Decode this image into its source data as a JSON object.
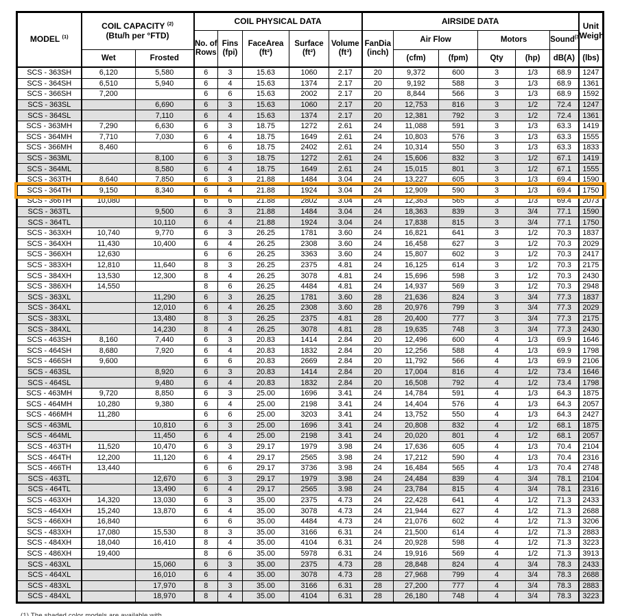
{
  "table": {
    "col_keys": [
      "model",
      "wet",
      "frosted",
      "rows",
      "fins",
      "face_area",
      "surface",
      "volume",
      "fan_dia",
      "cfm",
      "fpm",
      "motor_qty",
      "motor_hp",
      "sound_dba",
      "weight_lbs"
    ],
    "header": {
      "model": "MODEL",
      "model_sup": "(1)",
      "coil_capacity": "COIL CAPACITY",
      "coil_capacity_sup": "(2)",
      "coil_capacity_sub": "(Btu/h per °FTD)",
      "wet": "Wet",
      "frosted": "Frosted",
      "coil_physical": "COIL PHYSICAL DATA",
      "rows_l1": "No. of",
      "rows_l2": "Rows",
      "fins_l1": "Fins",
      "fins_l2": "(fpi)",
      "face_l1": "FaceArea",
      "face_l2": "(ft²)",
      "surface_l1": "Surface",
      "surface_l2": "(ft²)",
      "volume_l1": "Volume",
      "volume_l2": "(ft³)",
      "airside": "AIRSIDE DATA",
      "fandia_l1": "FanDia",
      "fandia_l2": "(inch)",
      "airflow": "Air Flow",
      "cfm": "(cfm)",
      "fpm": "(fpm)",
      "motors": "Motors",
      "qty": "Qty",
      "hp": "(hp)",
      "sound": "Sound",
      "sound_sup": "(3)",
      "dba": "dB(A)",
      "unit_l1": "Unit",
      "unit_l2": "Weight",
      "lbs": "(lbs)"
    },
    "rows": [
      {
        "style": "plain",
        "c": [
          "SCS - 363SH",
          "6,120",
          "5,580",
          "6",
          "3",
          "15.63",
          "1060",
          "2.17",
          "20",
          "9,372",
          "600",
          "3",
          "1/3",
          "68.9",
          "1247"
        ]
      },
      {
        "style": "plain",
        "c": [
          "SCS - 364SH",
          "6,510",
          "5,940",
          "6",
          "4",
          "15.63",
          "1374",
          "2.17",
          "20",
          "9,192",
          "588",
          "3",
          "1/3",
          "68.9",
          "1361"
        ]
      },
      {
        "style": "plain",
        "c": [
          "SCS - 366SH",
          "7,200",
          "",
          "6",
          "6",
          "15.63",
          "2002",
          "2.17",
          "20",
          "8,844",
          "566",
          "3",
          "1/3",
          "68.9",
          "1592"
        ]
      },
      {
        "style": "shaded",
        "c": [
          "SCS - 363SL",
          "",
          "6,690",
          "6",
          "3",
          "15.63",
          "1060",
          "2.17",
          "20",
          "12,753",
          "816",
          "3",
          "1/2",
          "72.4",
          "1247"
        ]
      },
      {
        "style": "shaded",
        "c": [
          "SCS - 364SL",
          "",
          "7,110",
          "6",
          "4",
          "15.63",
          "1374",
          "2.17",
          "20",
          "12,381",
          "792",
          "3",
          "1/2",
          "72.4",
          "1361"
        ]
      },
      {
        "style": "plain",
        "c": [
          "SCS - 363MH",
          "7,290",
          "6,630",
          "6",
          "3",
          "18.75",
          "1272",
          "2.61",
          "24",
          "11,088",
          "591",
          "3",
          "1/3",
          "63.3",
          "1419"
        ]
      },
      {
        "style": "plain",
        "c": [
          "SCS - 364MH",
          "7,710",
          "7,030",
          "6",
          "4",
          "18.75",
          "1649",
          "2.61",
          "24",
          "10,803",
          "576",
          "3",
          "1/3",
          "63.3",
          "1555"
        ]
      },
      {
        "style": "plain",
        "c": [
          "SCS - 366MH",
          "8,460",
          "",
          "6",
          "6",
          "18.75",
          "2402",
          "2.61",
          "24",
          "10,314",
          "550",
          "3",
          "1/3",
          "63.3",
          "1833"
        ]
      },
      {
        "style": "shaded",
        "c": [
          "SCS - 363ML",
          "",
          "8,100",
          "6",
          "3",
          "18.75",
          "1272",
          "2.61",
          "24",
          "15,606",
          "832",
          "3",
          "1/2",
          "67.1",
          "1419"
        ]
      },
      {
        "style": "shaded",
        "c": [
          "SCS - 364ML",
          "",
          "8,580",
          "6",
          "4",
          "18.75",
          "1649",
          "2.61",
          "24",
          "15,015",
          "801",
          "3",
          "1/2",
          "67.1",
          "1555"
        ]
      },
      {
        "style": "plain",
        "c": [
          "SCS - 363TH",
          "8,640",
          "7,850",
          "6",
          "3",
          "21.88",
          "1484",
          "3.04",
          "24",
          "13,227",
          "605",
          "3",
          "1/3",
          "69.4",
          "1590"
        ]
      },
      {
        "style": "highlight",
        "c": [
          "SCS - 364TH",
          "9,150",
          "8,340",
          "6",
          "4",
          "21.88",
          "1924",
          "3.04",
          "24",
          "12,909",
          "590",
          "3",
          "1/3",
          "69.4",
          "1750"
        ]
      },
      {
        "style": "plain",
        "c": [
          "SCS - 366TH",
          "10,080",
          "",
          "6",
          "6",
          "21.88",
          "2802",
          "3.04",
          "24",
          "12,363",
          "565",
          "3",
          "1/3",
          "69.4",
          "2073"
        ]
      },
      {
        "style": "shaded",
        "c": [
          "SCS - 363TL",
          "",
          "9,500",
          "6",
          "3",
          "21.88",
          "1484",
          "3.04",
          "24",
          "18,363",
          "839",
          "3",
          "3/4",
          "77.1",
          "1590"
        ]
      },
      {
        "style": "shaded",
        "c": [
          "SCS - 364TL",
          "",
          "10,110",
          "6",
          "4",
          "21.88",
          "1924",
          "3.04",
          "24",
          "17,838",
          "815",
          "3",
          "3/4",
          "77.1",
          "1750"
        ]
      },
      {
        "style": "plain",
        "c": [
          "SCS - 363XH",
          "10,740",
          "9,770",
          "6",
          "3",
          "26.25",
          "1781",
          "3.60",
          "24",
          "16,821",
          "641",
          "3",
          "1/2",
          "70.3",
          "1837"
        ]
      },
      {
        "style": "plain",
        "c": [
          "SCS - 364XH",
          "11,430",
          "10,400",
          "6",
          "4",
          "26.25",
          "2308",
          "3.60",
          "24",
          "16,458",
          "627",
          "3",
          "1/2",
          "70.3",
          "2029"
        ]
      },
      {
        "style": "plain",
        "c": [
          "SCS - 366XH",
          "12,630",
          "",
          "6",
          "6",
          "26.25",
          "3363",
          "3.60",
          "24",
          "15,807",
          "602",
          "3",
          "1/2",
          "70.3",
          "2417"
        ]
      },
      {
        "style": "plain",
        "c": [
          "SCS - 383XH",
          "12,810",
          "11,640",
          "8",
          "3",
          "26.25",
          "2375",
          "4.81",
          "24",
          "16,125",
          "614",
          "3",
          "1/2",
          "70.3",
          "2175"
        ]
      },
      {
        "style": "plain",
        "c": [
          "SCS - 384XH",
          "13,530",
          "12,300",
          "8",
          "4",
          "26.25",
          "3078",
          "4.81",
          "24",
          "15,696",
          "598",
          "3",
          "1/2",
          "70.3",
          "2430"
        ]
      },
      {
        "style": "plain",
        "c": [
          "SCS - 386XH",
          "14,550",
          "",
          "8",
          "6",
          "26.25",
          "4484",
          "4.81",
          "24",
          "14,937",
          "569",
          "3",
          "1/2",
          "70.3",
          "2948"
        ]
      },
      {
        "style": "shaded",
        "c": [
          "SCS - 363XL",
          "",
          "11,290",
          "6",
          "3",
          "26.25",
          "1781",
          "3.60",
          "28",
          "21,636",
          "824",
          "3",
          "3/4",
          "77.3",
          "1837"
        ]
      },
      {
        "style": "shaded",
        "c": [
          "SCS - 364XL",
          "",
          "12,010",
          "6",
          "4",
          "26.25",
          "2308",
          "3.60",
          "28",
          "20,976",
          "799",
          "3",
          "3/4",
          "77.3",
          "2029"
        ]
      },
      {
        "style": "shaded",
        "c": [
          "SCS - 383XL",
          "",
          "13,480",
          "8",
          "3",
          "26.25",
          "2375",
          "4.81",
          "28",
          "20,400",
          "777",
          "3",
          "3/4",
          "77.3",
          "2175"
        ]
      },
      {
        "style": "shaded",
        "c": [
          "SCS - 384XL",
          "",
          "14,230",
          "8",
          "4",
          "26.25",
          "3078",
          "4.81",
          "28",
          "19,635",
          "748",
          "3",
          "3/4",
          "77.3",
          "2430"
        ]
      },
      {
        "style": "plain",
        "c": [
          "SCS - 463SH",
          "8,160",
          "7,440",
          "6",
          "3",
          "20.83",
          "1414",
          "2.84",
          "20",
          "12,496",
          "600",
          "4",
          "1/3",
          "69.9",
          "1646"
        ]
      },
      {
        "style": "plain",
        "c": [
          "SCS - 464SH",
          "8,680",
          "7,920",
          "6",
          "4",
          "20.83",
          "1832",
          "2.84",
          "20",
          "12,256",
          "588",
          "4",
          "1/3",
          "69.9",
          "1798"
        ]
      },
      {
        "style": "plain",
        "c": [
          "SCS - 466SH",
          "9,600",
          "",
          "6",
          "6",
          "20.83",
          "2669",
          "2.84",
          "20",
          "11,792",
          "566",
          "4",
          "1/3",
          "69.9",
          "2106"
        ]
      },
      {
        "style": "shaded",
        "c": [
          "SCS - 463SL",
          "",
          "8,920",
          "6",
          "3",
          "20.83",
          "1414",
          "2.84",
          "20",
          "17,004",
          "816",
          "4",
          "1/2",
          "73.4",
          "1646"
        ]
      },
      {
        "style": "shaded",
        "c": [
          "SCS - 464SL",
          "",
          "9,480",
          "6",
          "4",
          "20.83",
          "1832",
          "2.84",
          "20",
          "16,508",
          "792",
          "4",
          "1/2",
          "73.4",
          "1798"
        ]
      },
      {
        "style": "plain",
        "c": [
          "SCS - 463MH",
          "9,720",
          "8,850",
          "6",
          "3",
          "25.00",
          "1696",
          "3.41",
          "24",
          "14,784",
          "591",
          "4",
          "1/3",
          "64.3",
          "1875"
        ]
      },
      {
        "style": "plain",
        "c": [
          "SCS - 464MH",
          "10,280",
          "9,380",
          "6",
          "4",
          "25.00",
          "2198",
          "3.41",
          "24",
          "14,404",
          "576",
          "4",
          "1/3",
          "64.3",
          "2057"
        ]
      },
      {
        "style": "plain",
        "c": [
          "SCS - 466MH",
          "11,280",
          "",
          "6",
          "6",
          "25.00",
          "3203",
          "3.41",
          "24",
          "13,752",
          "550",
          "4",
          "1/3",
          "64.3",
          "2427"
        ]
      },
      {
        "style": "shaded",
        "c": [
          "SCS - 463ML",
          "",
          "10,810",
          "6",
          "3",
          "25.00",
          "1696",
          "3.41",
          "24",
          "20,808",
          "832",
          "4",
          "1/2",
          "68.1",
          "1875"
        ]
      },
      {
        "style": "shaded",
        "c": [
          "SCS - 464ML",
          "",
          "11,450",
          "6",
          "4",
          "25.00",
          "2198",
          "3.41",
          "24",
          "20,020",
          "801",
          "4",
          "1/2",
          "68.1",
          "2057"
        ]
      },
      {
        "style": "plain",
        "c": [
          "SCS - 463TH",
          "11,520",
          "10,470",
          "6",
          "3",
          "29.17",
          "1979",
          "3.98",
          "24",
          "17,636",
          "605",
          "4",
          "1/3",
          "70.4",
          "2104"
        ]
      },
      {
        "style": "plain",
        "c": [
          "SCS - 464TH",
          "12,200",
          "11,120",
          "6",
          "4",
          "29.17",
          "2565",
          "3.98",
          "24",
          "17,212",
          "590",
          "4",
          "1/3",
          "70.4",
          "2316"
        ]
      },
      {
        "style": "plain",
        "c": [
          "SCS - 466TH",
          "13,440",
          "",
          "6",
          "6",
          "29.17",
          "3736",
          "3.98",
          "24",
          "16,484",
          "565",
          "4",
          "1/3",
          "70.4",
          "2748"
        ]
      },
      {
        "style": "shaded",
        "c": [
          "SCS - 463TL",
          "",
          "12,670",
          "6",
          "3",
          "29.17",
          "1979",
          "3.98",
          "24",
          "24,484",
          "839",
          "4",
          "3/4",
          "78.1",
          "2104"
        ]
      },
      {
        "style": "shaded",
        "c": [
          "SCS - 464TL",
          "",
          "13,490",
          "6",
          "4",
          "29.17",
          "2565",
          "3.98",
          "24",
          "23,784",
          "815",
          "4",
          "3/4",
          "78.1",
          "2316"
        ]
      },
      {
        "style": "plain",
        "c": [
          "SCS - 463XH",
          "14,320",
          "13,030",
          "6",
          "3",
          "35.00",
          "2375",
          "4.73",
          "24",
          "22,428",
          "641",
          "4",
          "1/2",
          "71.3",
          "2433"
        ]
      },
      {
        "style": "plain",
        "c": [
          "SCS - 464XH",
          "15,240",
          "13,870",
          "6",
          "4",
          "35.00",
          "3078",
          "4.73",
          "24",
          "21,944",
          "627",
          "4",
          "1/2",
          "71.3",
          "2688"
        ]
      },
      {
        "style": "plain",
        "c": [
          "SCS - 466XH",
          "16,840",
          "",
          "6",
          "6",
          "35.00",
          "4484",
          "4.73",
          "24",
          "21,076",
          "602",
          "4",
          "1/2",
          "71.3",
          "3206"
        ]
      },
      {
        "style": "plain",
        "c": [
          "SCS - 483XH",
          "17,080",
          "15,530",
          "8",
          "3",
          "35.00",
          "3166",
          "6.31",
          "24",
          "21,500",
          "614",
          "4",
          "1/2",
          "71.3",
          "2883"
        ]
      },
      {
        "style": "plain",
        "c": [
          "SCS - 484XH",
          "18,040",
          "16,410",
          "8",
          "4",
          "35.00",
          "4104",
          "6.31",
          "24",
          "20,928",
          "598",
          "4",
          "1/2",
          "71.3",
          "3223"
        ]
      },
      {
        "style": "plain",
        "c": [
          "SCS - 486XH",
          "19,400",
          "",
          "8",
          "6",
          "35.00",
          "5978",
          "6.31",
          "24",
          "19,916",
          "569",
          "4",
          "1/2",
          "71.3",
          "3913"
        ]
      },
      {
        "style": "shaded",
        "c": [
          "SCS - 463XL",
          "",
          "15,060",
          "6",
          "3",
          "35.00",
          "2375",
          "4.73",
          "28",
          "28,848",
          "824",
          "4",
          "3/4",
          "78.3",
          "2433"
        ]
      },
      {
        "style": "shaded",
        "c": [
          "SCS - 464XL",
          "",
          "16,010",
          "6",
          "4",
          "35.00",
          "3078",
          "4.73",
          "28",
          "27,968",
          "799",
          "4",
          "3/4",
          "78.3",
          "2688"
        ]
      },
      {
        "style": "shaded",
        "c": [
          "SCS - 483XL",
          "",
          "17,970",
          "8",
          "3",
          "35.00",
          "3166",
          "6.31",
          "28",
          "27,200",
          "777",
          "4",
          "3/4",
          "78.3",
          "2883"
        ]
      },
      {
        "style": "shaded",
        "c": [
          "SCS - 484XL",
          "",
          "18,970",
          "8",
          "4",
          "35.00",
          "4104",
          "6.31",
          "28",
          "26,180",
          "748",
          "4",
          "3/4",
          "78.3",
          "3223"
        ]
      }
    ]
  },
  "highlight_color": "#F5A01D",
  "shaded_row_color": "#e0e0e0",
  "footnote": "(1) The shaded color models are available with..."
}
